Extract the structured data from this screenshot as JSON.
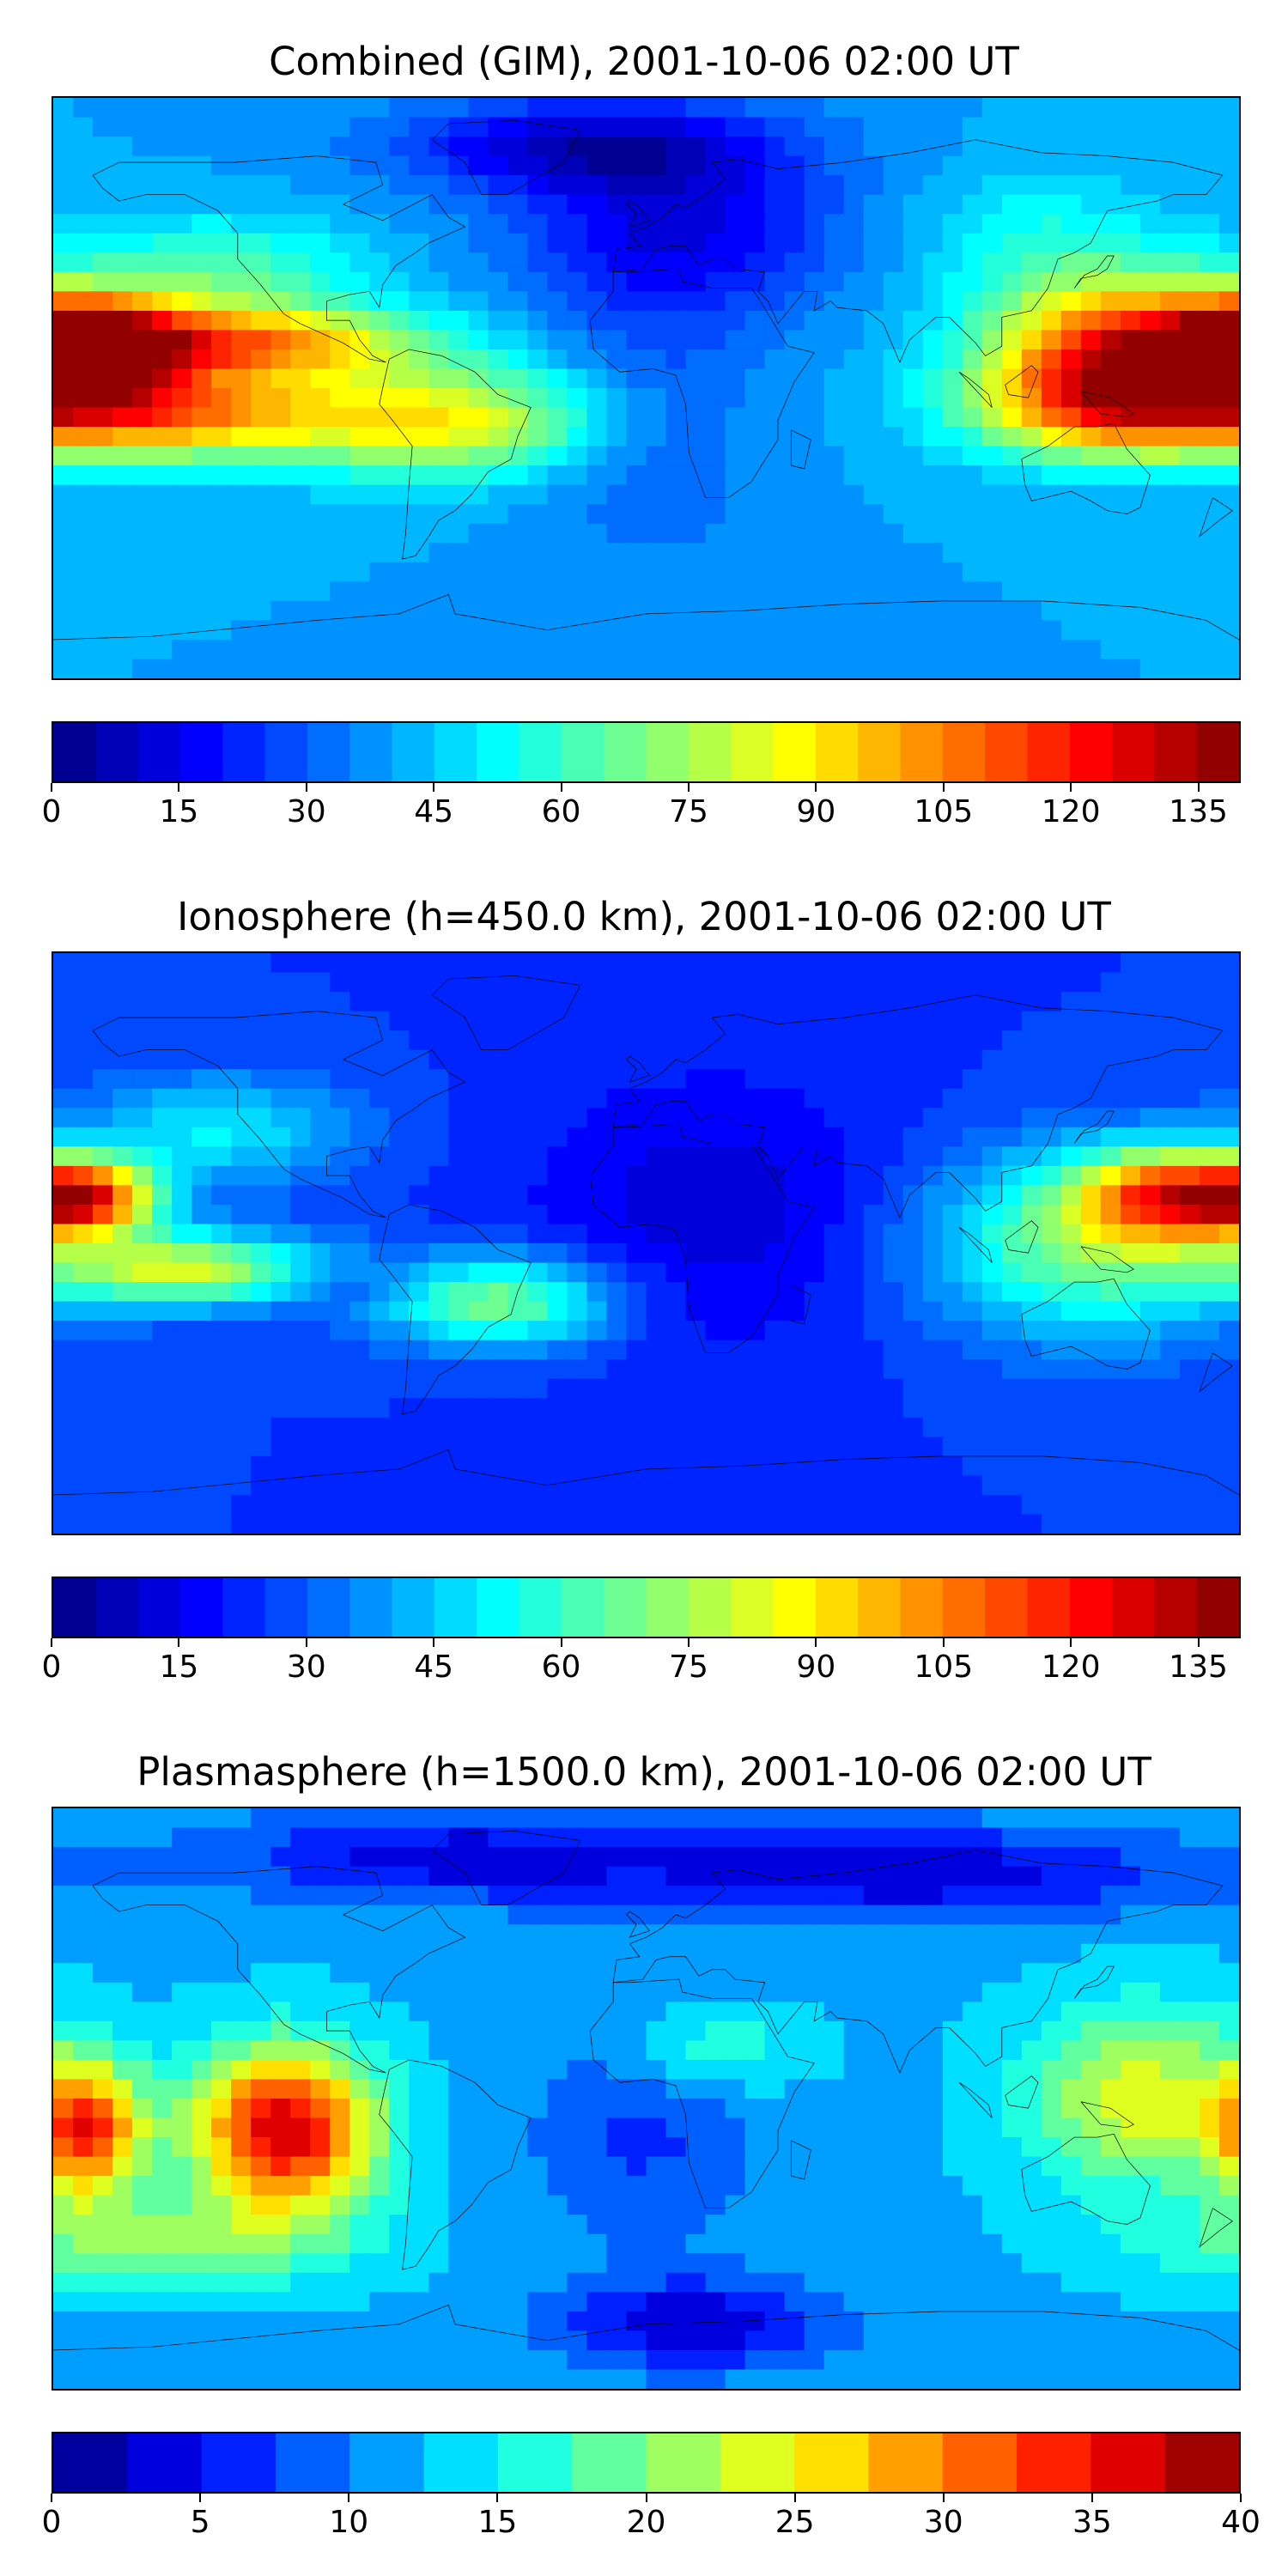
{
  "figure": {
    "panels": [
      {
        "title": "Combined (GIM), 2001-10-06 02:00 UT",
        "colorbar": {
          "min": 0,
          "max": 140,
          "levels": 28,
          "ticks": [
            "0",
            "15",
            "30",
            "45",
            "60",
            "75",
            "90",
            "105",
            "120",
            "135"
          ],
          "tick_values": [
            0,
            15,
            30,
            45,
            60,
            75,
            90,
            105,
            120,
            135
          ]
        },
        "background_value": 40,
        "blobs": [
          {
            "lon": -170,
            "lat": 12,
            "v": 135,
            "rlon": 18,
            "rlat": 10
          },
          {
            "lon": -150,
            "lat": -8,
            "v": 105,
            "rlon": 40,
            "rlat": 10
          },
          {
            "lon": -125,
            "lat": 14,
            "v": 100,
            "rlon": 40,
            "rlat": 8
          },
          {
            "lon": -60,
            "lat": -10,
            "v": 85,
            "rlon": 35,
            "rlat": 12
          },
          {
            "lon": 150,
            "lat": 15,
            "v": 110,
            "rlon": 30,
            "rlat": 14
          },
          {
            "lon": 140,
            "lat": -5,
            "v": 100,
            "rlon": 30,
            "rlat": 12
          },
          {
            "lon": -130,
            "lat": 35,
            "v": 65,
            "rlon": 30,
            "rlat": 12
          },
          {
            "lon": 120,
            "lat": 45,
            "v": 55,
            "rlon": 25,
            "rlat": 15
          },
          {
            "lon": 10,
            "lat": 50,
            "v": 15,
            "rlon": 35,
            "rlat": 20
          },
          {
            "lon": 0,
            "lat": -10,
            "v": 28,
            "rlon": 25,
            "rlat": 30
          },
          {
            "lon": -20,
            "lat": 75,
            "v": 12,
            "rlon": 40,
            "rlat": 10
          }
        ]
      },
      {
        "title": "Ionosphere  (h=450.0 km), 2001-10-06 02:00 UT",
        "colorbar": {
          "min": 0,
          "max": 140,
          "levels": 28,
          "ticks": [
            "0",
            "15",
            "30",
            "45",
            "60",
            "75",
            "90",
            "105",
            "120",
            "135"
          ],
          "tick_values": [
            0,
            15,
            30,
            45,
            60,
            75,
            90,
            105,
            120,
            135
          ]
        },
        "background_value": 25,
        "blobs": [
          {
            "lon": -170,
            "lat": 14,
            "v": 105,
            "rlon": 15,
            "rlat": 8
          },
          {
            "lon": -140,
            "lat": -8,
            "v": 80,
            "rlon": 30,
            "rlat": 8
          },
          {
            "lon": -90,
            "lat": -12,
            "v": 15,
            "rlon": 18,
            "rlat": 5
          },
          {
            "lon": -45,
            "lat": -18,
            "v": 70,
            "rlon": 25,
            "rlat": 10
          },
          {
            "lon": 160,
            "lat": 15,
            "v": 95,
            "rlon": 20,
            "rlat": 10
          },
          {
            "lon": 135,
            "lat": 0,
            "v": 70,
            "rlon": 35,
            "rlat": 20
          },
          {
            "lon": 20,
            "lat": 10,
            "v": 12,
            "rlon": 40,
            "rlat": 30
          },
          {
            "lon": -130,
            "lat": 35,
            "v": 50,
            "rlon": 30,
            "rlat": 12
          }
        ]
      },
      {
        "title": "Plasmasphere (h=1500.0 km), 2001-10-06 02:00 UT",
        "colorbar": {
          "min": 0,
          "max": 40,
          "levels": 16,
          "ticks": [
            "0",
            "5",
            "10",
            "15",
            "20",
            "25",
            "30",
            "35",
            "40"
          ],
          "tick_values": [
            0,
            5,
            10,
            15,
            20,
            25,
            30,
            35,
            40
          ]
        },
        "background_value": 12,
        "blobs": [
          {
            "lon": -110,
            "lat": -10,
            "v": 37,
            "rlon": 20,
            "rlat": 18
          },
          {
            "lon": -170,
            "lat": -10,
            "v": 32,
            "rlon": 12,
            "rlat": 15
          },
          {
            "lon": 150,
            "lat": 0,
            "v": 24,
            "rlon": 25,
            "rlat": 20
          },
          {
            "lon": -150,
            "lat": -45,
            "v": 20,
            "rlon": 40,
            "rlat": 10
          },
          {
            "lon": 15,
            "lat": -70,
            "v": 3,
            "rlon": 30,
            "rlat": 10
          },
          {
            "lon": 0,
            "lat": -10,
            "v": 7,
            "rlon": 25,
            "rlat": 25
          },
          {
            "lon": 80,
            "lat": 70,
            "v": 3,
            "rlon": 60,
            "rlat": 10
          },
          {
            "lon": -60,
            "lat": 75,
            "v": 4,
            "rlon": 50,
            "rlat": 10
          },
          {
            "lon": 20,
            "lat": 15,
            "v": 18,
            "rlon": 20,
            "rlat": 10
          }
        ]
      }
    ]
  }
}
